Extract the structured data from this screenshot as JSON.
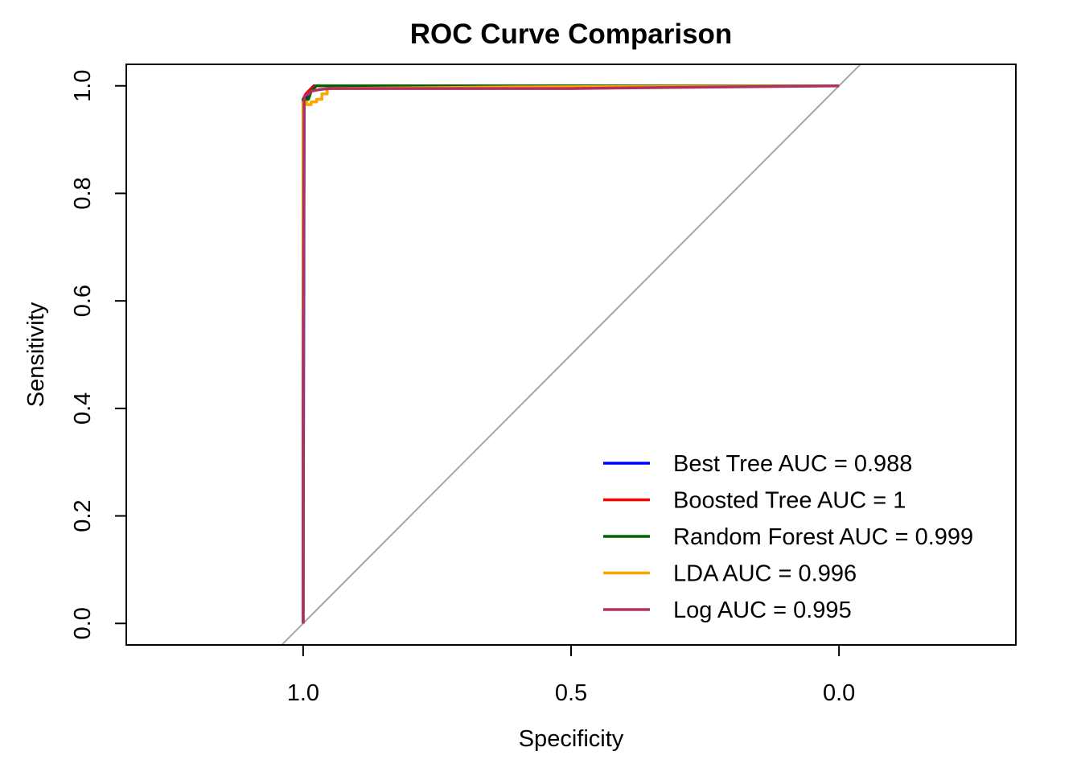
{
  "chart_data": {
    "type": "line",
    "title": "ROC Curve Comparison",
    "xlabel": "Specificity",
    "ylabel": "Sensitivity",
    "xlim": [
      1.33,
      -0.33
    ],
    "ylim": [
      -0.04,
      1.04
    ],
    "x_reversed": true,
    "x_ticks": [
      {
        "value": 1.0,
        "label": "1.0"
      },
      {
        "value": 0.5,
        "label": "0.5"
      },
      {
        "value": 0.0,
        "label": "0.0"
      }
    ],
    "y_ticks": [
      {
        "value": 0.0,
        "label": "0.0"
      },
      {
        "value": 0.2,
        "label": "0.2"
      },
      {
        "value": 0.4,
        "label": "0.4"
      },
      {
        "value": 0.6,
        "label": "0.6"
      },
      {
        "value": 0.8,
        "label": "0.8"
      },
      {
        "value": 1.0,
        "label": "1.0"
      }
    ],
    "grid": false,
    "legend_position": "bottom-right",
    "reference_line": {
      "x": [
        1.0,
        0.0
      ],
      "y": [
        0.0,
        1.0
      ],
      "color": "#a6a6a6"
    },
    "series": [
      {
        "name": "Best Tree AUC = 0.988",
        "color": "#0000ff",
        "specificity": [
          1.0,
          0.998,
          0.993,
          0.99,
          0.985,
          0.98,
          0.0
        ],
        "sensitivity": [
          0.0,
          0.97,
          0.98,
          0.99,
          0.995,
          1.0,
          1.0
        ]
      },
      {
        "name": "Boosted Tree AUC = 1",
        "color": "#ff0000",
        "specificity": [
          1.0,
          1.0,
          0.995,
          0.985,
          0.978,
          0.0
        ],
        "sensitivity": [
          0.0,
          0.975,
          0.985,
          0.995,
          1.0,
          1.0
        ]
      },
      {
        "name": "Random Forest AUC = 0.999",
        "color": "#006400",
        "specificity": [
          1.0,
          1.0,
          0.99,
          0.985,
          0.975,
          0.6,
          0.0
        ],
        "sensitivity": [
          0.0,
          0.975,
          0.975,
          0.99,
          1.0,
          1.0,
          1.0
        ]
      },
      {
        "name": "LDA AUC = 0.996",
        "color": "#ffa500",
        "specificity": [
          1.0,
          1.0,
          0.993,
          0.993,
          0.985,
          0.985,
          0.975,
          0.975,
          0.965,
          0.965,
          0.955,
          0.955,
          0.6,
          0.0
        ],
        "sensitivity": [
          0.0,
          0.97,
          0.97,
          0.965,
          0.965,
          0.97,
          0.97,
          0.975,
          0.975,
          0.985,
          0.985,
          0.995,
          0.998,
          1.0
        ]
      },
      {
        "name": "Log AUC = 0.995",
        "color": "#b03060",
        "specificity": [
          1.0,
          1.0,
          0.998,
          0.995,
          0.99,
          0.985,
          0.97,
          0.95,
          0.5,
          0.0
        ],
        "sensitivity": [
          0.0,
          0.4,
          0.98,
          0.982,
          0.985,
          0.99,
          0.993,
          0.995,
          0.995,
          1.0
        ]
      }
    ]
  }
}
